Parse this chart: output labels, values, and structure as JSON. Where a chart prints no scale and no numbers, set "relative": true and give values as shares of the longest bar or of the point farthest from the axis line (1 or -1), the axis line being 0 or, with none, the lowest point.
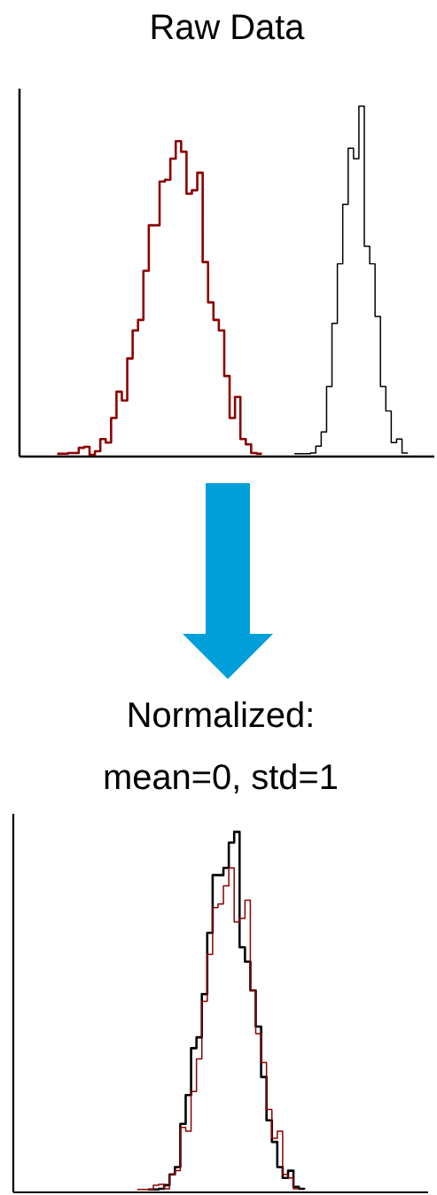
{
  "chart_data": [
    {
      "type": "step",
      "relative": true,
      "title": "Raw Data",
      "categories": [
        null,
        null,
        null,
        null,
        null,
        null,
        null,
        null,
        null,
        null,
        null,
        null,
        null,
        null,
        null,
        null,
        null,
        null,
        null,
        null,
        null,
        null,
        null,
        null,
        null,
        null,
        null,
        null,
        null,
        null,
        null,
        null,
        null,
        null,
        null,
        null,
        null,
        null,
        null,
        null,
        null,
        null,
        null,
        null,
        null,
        null,
        null,
        null,
        null,
        null,
        null,
        null,
        null,
        null,
        null,
        null,
        null,
        null,
        null,
        null,
        null,
        null,
        null,
        null,
        null,
        null,
        null,
        null,
        null,
        null,
        null,
        null,
        null,
        null,
        null,
        null,
        null,
        null
      ],
      "series": [
        {
          "color": "#8b0000",
          "values": [
            null,
            null,
            null,
            null,
            null,
            null,
            null,
            0.008,
            0.008,
            0.01,
            0.01,
            0.025,
            0.028,
            0.005,
            0.015,
            0.05,
            0.04,
            0.11,
            0.185,
            0.16,
            0.28,
            0.36,
            0.39,
            0.53,
            0.66,
            0.66,
            0.785,
            0.79,
            0.85,
            0.9,
            0.87,
            0.75,
            0.76,
            0.81,
            0.555,
            0.44,
            0.39,
            0.36,
            0.23,
            0.11,
            0.17,
            0.05,
            0.035,
            0.01,
            0.008,
            0.008,
            null,
            null,
            null,
            null,
            null,
            null,
            null,
            null,
            null,
            null,
            null,
            null,
            null,
            null,
            null,
            null,
            null,
            null,
            null,
            null,
            null,
            null,
            null,
            null,
            null,
            null,
            null,
            null,
            null,
            null,
            null,
            null
          ]
        },
        {
          "color": "#000000",
          "values": [
            null,
            null,
            null,
            null,
            null,
            null,
            null,
            null,
            null,
            null,
            null,
            null,
            null,
            null,
            null,
            null,
            null,
            null,
            null,
            null,
            null,
            null,
            null,
            null,
            null,
            null,
            null,
            null,
            null,
            null,
            null,
            null,
            null,
            null,
            null,
            null,
            null,
            null,
            null,
            null,
            null,
            null,
            null,
            null,
            null,
            null,
            null,
            null,
            null,
            null,
            null,
            0.008,
            0.008,
            0.008,
            0.01,
            0.03,
            0.07,
            0.2,
            0.38,
            0.55,
            0.72,
            0.88,
            0.85,
            1.0,
            0.6,
            0.55,
            0.4,
            0.2,
            0.13,
            0.04,
            0.05,
            0.01,
            0.008,
            null,
            null,
            null,
            null,
            null
          ]
        }
      ]
    },
    {
      "type": "step",
      "relative": true,
      "title": "Normalized:",
      "subtitle": "mean=0, std=1",
      "categories": [
        null,
        null,
        null,
        null,
        null,
        null,
        null,
        null,
        null,
        null,
        null,
        null,
        null,
        null,
        null,
        null,
        null,
        null,
        null,
        null,
        null,
        null,
        null,
        null,
        null,
        null,
        null,
        null,
        null,
        null,
        null,
        null,
        null,
        null,
        null,
        null,
        null,
        null,
        null,
        null,
        null,
        null,
        null,
        null,
        null,
        null,
        null,
        null,
        null,
        null,
        null,
        null,
        null,
        null,
        null,
        null,
        null,
        null,
        null,
        null,
        null,
        null,
        null,
        null,
        null,
        null,
        null,
        null,
        null,
        null,
        null,
        null,
        null,
        null,
        null,
        null,
        null,
        null
      ],
      "series": [
        {
          "color": "#000000",
          "values": [
            null,
            null,
            null,
            null,
            null,
            null,
            null,
            null,
            null,
            null,
            null,
            null,
            null,
            null,
            null,
            null,
            null,
            null,
            null,
            null,
            null,
            null,
            null,
            null,
            null,
            0.008,
            0.008,
            0.01,
            0.02,
            0.05,
            0.07,
            0.19,
            0.27,
            0.4,
            0.43,
            0.55,
            0.72,
            0.88,
            0.88,
            0.9,
            0.97,
            1.0,
            0.68,
            0.64,
            0.56,
            0.46,
            0.32,
            0.2,
            0.14,
            0.07,
            0.04,
            0.06,
            0.015,
            0.01,
            0.008,
            null,
            null,
            null,
            null,
            null,
            null,
            null,
            null,
            null,
            null,
            null,
            null,
            null,
            null,
            null,
            null,
            null,
            null,
            null,
            null,
            null,
            null,
            null
          ]
        },
        {
          "color": "#8b0000",
          "values": [
            null,
            null,
            null,
            null,
            null,
            null,
            null,
            null,
            null,
            null,
            null,
            null,
            null,
            null,
            null,
            null,
            null,
            null,
            null,
            null,
            null,
            null,
            null,
            0.008,
            0.008,
            0.008,
            0.02,
            0.022,
            0.01,
            0.05,
            0.06,
            0.18,
            0.17,
            0.28,
            0.37,
            0.53,
            0.66,
            0.79,
            0.8,
            0.85,
            0.9,
            0.75,
            0.76,
            0.81,
            0.56,
            0.44,
            0.36,
            0.23,
            0.15,
            0.17,
            0.05,
            0.04,
            0.01,
            0.008,
            null,
            null,
            null,
            null,
            null,
            null,
            null,
            null,
            null,
            null,
            null,
            null,
            null,
            null,
            null,
            null,
            null,
            null,
            null,
            null,
            null,
            null,
            null,
            null
          ]
        }
      ]
    }
  ]
}
